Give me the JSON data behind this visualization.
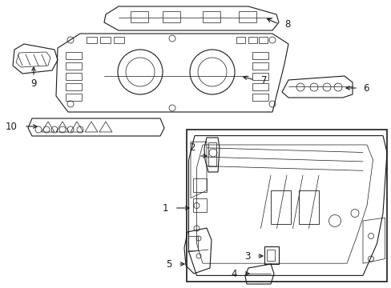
{
  "background_color": "#ffffff",
  "line_color": "#1a1a1a",
  "figsize": [
    4.89,
    3.6
  ],
  "dpi": 100,
  "label_fontsize": 8.5
}
